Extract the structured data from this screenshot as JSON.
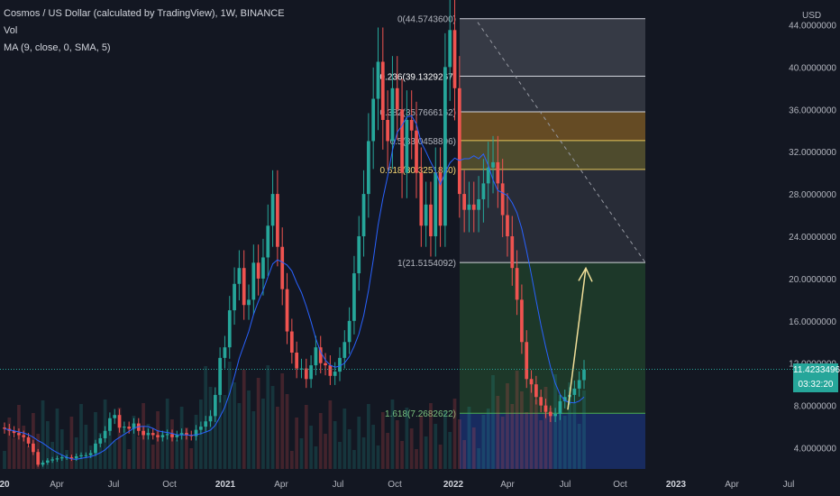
{
  "header": {
    "title": "Cosmos / US Dollar (calculated by TradingView), 1W, BINANCE",
    "vol_label": "Vol",
    "ma_label": "MA (9, close, 0, SMA, 5)"
  },
  "price_axis": {
    "currency": "USD",
    "ticks": [
      "44.0000000",
      "40.0000000",
      "36.0000000",
      "32.0000000",
      "28.0000000",
      "24.0000000",
      "20.0000000",
      "16.0000000",
      "12.0000000",
      "8.0000000",
      "4.0000000"
    ],
    "current_price": "11.4233496",
    "countdown": "03:32:20"
  },
  "time_axis": {
    "ticks": [
      "20",
      "Apr",
      "Jul",
      "Oct",
      "2021",
      "Apr",
      "Jul",
      "Oct",
      "2022",
      "Apr",
      "Jul",
      "Oct",
      "2023",
      "Apr",
      "Jul"
    ]
  },
  "fib_labels": [
    {
      "ratio": "0",
      "value": "0(44.5743600)"
    },
    {
      "ratio": "0.236",
      "value": "0.236(39.1329267)"
    },
    {
      "ratio": "0.382",
      "value": "0.382(35.7666162)"
    },
    {
      "ratio": "0.5",
      "value": "0.5(33.0458896)"
    },
    {
      "ratio": "0.618",
      "value": "0.618(30.3251830)"
    },
    {
      "ratio": "1",
      "value": "1(21.5154092)"
    },
    {
      "ratio": "1.618",
      "value": "1.618(7.2682622)"
    }
  ],
  "colors": {
    "background": "#131722",
    "up": "#26a69a",
    "down": "#ef5350",
    "ma": "#2962ff",
    "fib_line_gold": "#e6c65c",
    "arrow": "#f2e09a",
    "current_price": "#26a69a"
  },
  "chart_data": {
    "type": "candlestick",
    "title": "Cosmos / US Dollar (calculated by TradingView), 1W, BINANCE",
    "ylabel": "USD",
    "ylim": [
      2.0,
      46.0
    ],
    "y_scale": "linear",
    "grid": false,
    "fib_retracement": {
      "high": 44.57436,
      "low": 21.5154092,
      "levels": [
        {
          "ratio": 0,
          "price": 44.57436
        },
        {
          "ratio": 0.236,
          "price": 39.1329267
        },
        {
          "ratio": 0.382,
          "price": 35.7666162
        },
        {
          "ratio": 0.5,
          "price": 33.0458896
        },
        {
          "ratio": 0.618,
          "price": 30.325183
        },
        {
          "ratio": 1,
          "price": 21.5154092
        },
        {
          "ratio": 1.618,
          "price": 7.2682622
        }
      ]
    },
    "ohlc_close_series": [
      5.8,
      5.6,
      5.4,
      5.2,
      5.0,
      4.4,
      3.6,
      2.4,
      2.6,
      2.8,
      2.9,
      3.0,
      3.1,
      3.1,
      3.0,
      3.2,
      3.3,
      3.3,
      3.5,
      4.4,
      4.9,
      5.6,
      6.8,
      7.1,
      5.9,
      6.0,
      5.8,
      6.3,
      5.6,
      5.2,
      5.4,
      5.2,
      5.0,
      5.2,
      5.3,
      5.0,
      5.2,
      5.4,
      5.2,
      5.1,
      5.7,
      6.0,
      6.5,
      7.0,
      9.0,
      12.5,
      13.5,
      17.0,
      19.5,
      21.0,
      17.5,
      18.0,
      21.5,
      20.0,
      22.0,
      25.0,
      28.0,
      23.0,
      19.0,
      15.0,
      13.0,
      11.5,
      11.5,
      10.5,
      11.8,
      13.5,
      12.0,
      11.8,
      10.8,
      11.2,
      12.5,
      14.0,
      16.0,
      20.5,
      24.0,
      28.0,
      33.0,
      37.0,
      40.5,
      35.0,
      33.0,
      38.0,
      36.0,
      30.0,
      35.0,
      34.0,
      30.0,
      25.0,
      27.0,
      24.0,
      30.0,
      25.0,
      40.0,
      43.5,
      38.0,
      28.0,
      26.5,
      27.0,
      26.5,
      27.5,
      29.0,
      30.5,
      31.0,
      29.0,
      26.0,
      24.0,
      21.0,
      18.0,
      14.0,
      10.5,
      10.0,
      8.8,
      8.0,
      7.4,
      7.0,
      7.2,
      8.4,
      8.8,
      9.0,
      9.6,
      10.4,
      11.4
    ],
    "ma_series_name": "MA (9, close, 0, SMA, 5)",
    "annotation_arrow": {
      "from_price": 7.6,
      "to_price": 21.5
    }
  }
}
